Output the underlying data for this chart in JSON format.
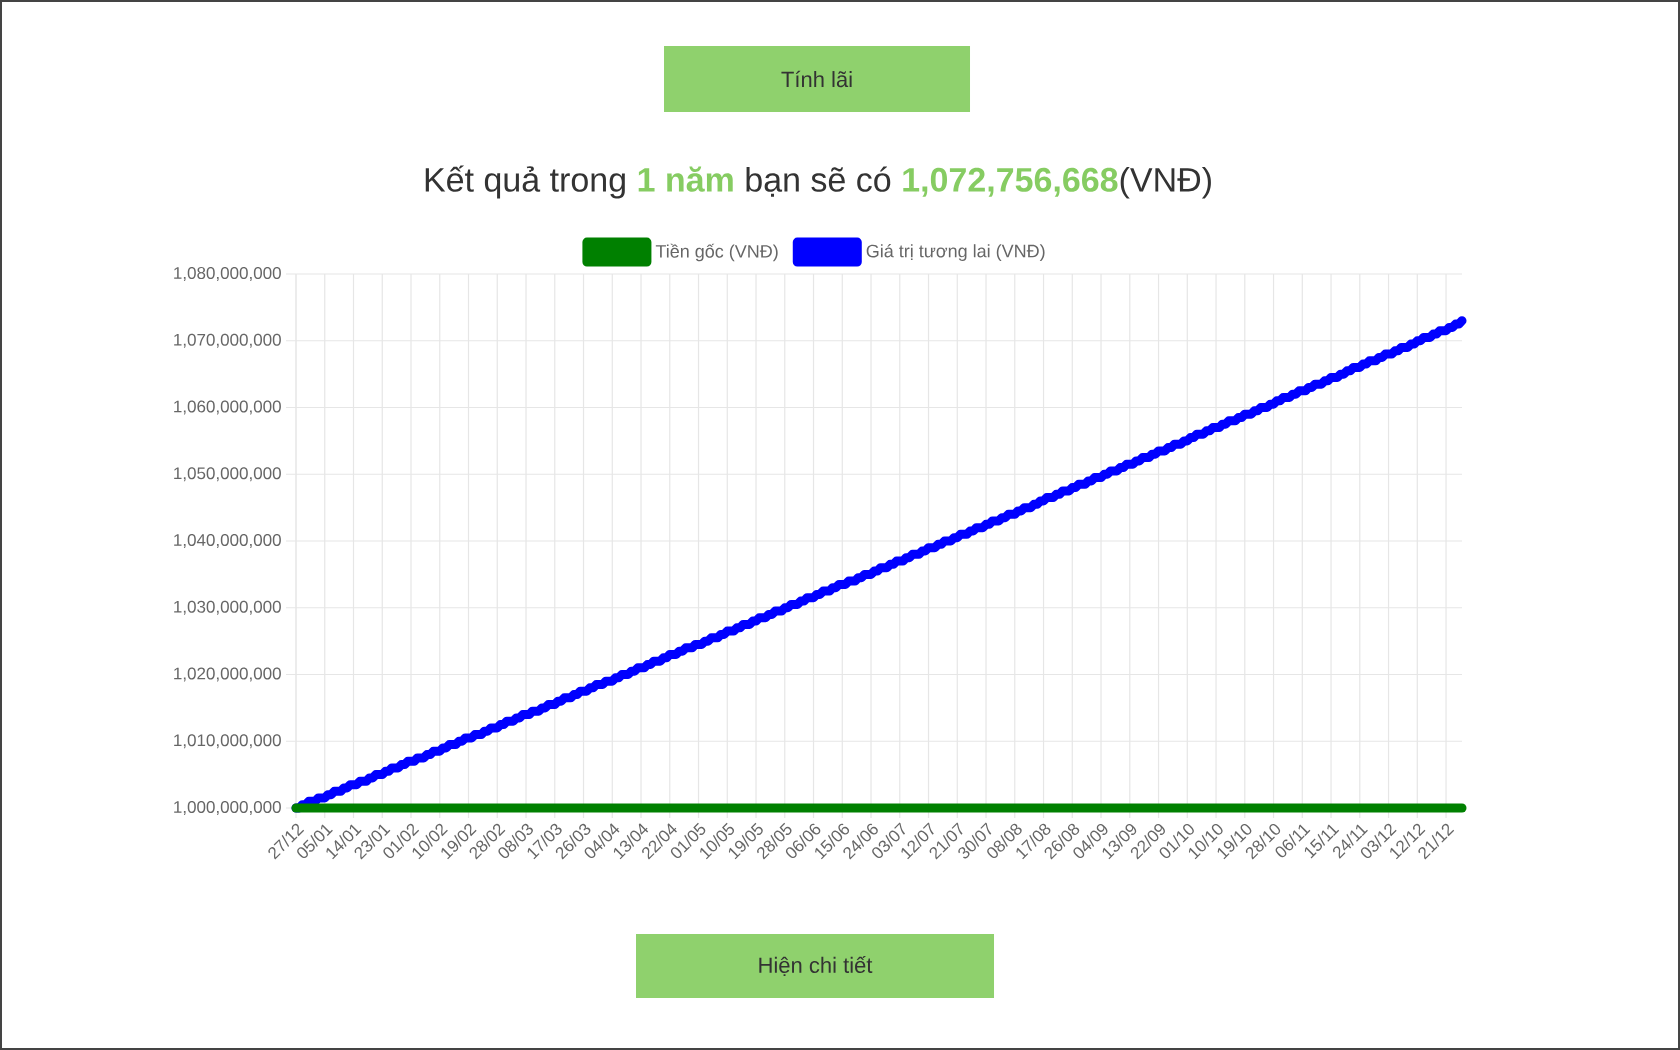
{
  "chart_data": {
    "type": "line",
    "title": "Kết quả trong **1 năm** bạn sẽ có **1,072,756,668**(VNĐ)",
    "annotations": [
      "Tính lãi",
      "Hiện chi tiết"
    ],
    "categories": [
      "27/12",
      null,
      null,
      null,
      null,
      null,
      null,
      null,
      null,
      "05/01",
      null,
      null,
      null,
      null,
      null,
      null,
      null,
      null,
      "14/01",
      null,
      null,
      null,
      null,
      null,
      null,
      null,
      null,
      "23/01",
      null,
      null,
      null,
      null,
      null,
      null,
      null,
      null,
      "01/02",
      null,
      null,
      null,
      null,
      null,
      null,
      null,
      null,
      "10/02",
      null,
      null,
      null,
      null,
      null,
      null,
      null,
      null,
      "19/02",
      null,
      null,
      null,
      null,
      null,
      null,
      null,
      null,
      "28/02",
      null,
      null,
      null,
      null,
      null,
      null,
      null,
      null,
      "08/03",
      null,
      null,
      null,
      null,
      null,
      null,
      null,
      null,
      "17/03",
      null,
      null,
      null,
      null,
      null,
      null,
      null,
      null,
      "26/03",
      null,
      null,
      null,
      null,
      null,
      null,
      null,
      null,
      "04/04",
      null,
      null,
      null,
      null,
      null,
      null,
      null,
      null,
      "13/04",
      null,
      null,
      null,
      null,
      null,
      null,
      null,
      null,
      "22/04",
      null,
      null,
      null,
      null,
      null,
      null,
      null,
      null,
      "01/05",
      null,
      null,
      null,
      null,
      null,
      null,
      null,
      null,
      "10/05",
      null,
      null,
      null,
      null,
      null,
      null,
      null,
      null,
      "19/05",
      null,
      null,
      null,
      null,
      null,
      null,
      null,
      null,
      "28/05",
      null,
      null,
      null,
      null,
      null,
      null,
      null,
      null,
      "06/06",
      null,
      null,
      null,
      null,
      null,
      null,
      null,
      null,
      "15/06",
      null,
      null,
      null,
      null,
      null,
      null,
      null,
      null,
      "24/06",
      null,
      null,
      null,
      null,
      null,
      null,
      null,
      null,
      "03/07",
      null,
      null,
      null,
      null,
      null,
      null,
      null,
      null,
      "12/07",
      null,
      null,
      null,
      null,
      null,
      null,
      null,
      null,
      "21/07",
      null,
      null,
      null,
      null,
      null,
      null,
      null,
      null,
      "30/07",
      null,
      null,
      null,
      null,
      null,
      null,
      null,
      null,
      "08/08",
      null,
      null,
      null,
      null,
      null,
      null,
      null,
      null,
      "17/08",
      null,
      null,
      null,
      null,
      null,
      null,
      null,
      null,
      "26/08",
      null,
      null,
      null,
      null,
      null,
      null,
      null,
      null,
      "04/09",
      null,
      null,
      null,
      null,
      null,
      null,
      null,
      null,
      "13/09",
      null,
      null,
      null,
      null,
      null,
      null,
      null,
      null,
      "22/09",
      null,
      null,
      null,
      null,
      null,
      null,
      null,
      null,
      "01/10",
      null,
      null,
      null,
      null,
      null,
      null,
      null,
      null,
      "10/10",
      null,
      null,
      null,
      null,
      null,
      null,
      null,
      null,
      "19/10",
      null,
      null,
      null,
      null,
      null,
      null,
      null,
      null,
      "28/10",
      null,
      null,
      null,
      null,
      null,
      null,
      null,
      null,
      "06/11",
      null,
      null,
      null,
      null,
      null,
      null,
      null,
      null,
      "15/11",
      null,
      null,
      null,
      null,
      null,
      null,
      null,
      null,
      "24/11",
      null,
      null,
      null,
      null,
      null,
      null,
      null,
      null,
      "03/12",
      null,
      null,
      null,
      null,
      null,
      null,
      null,
      null,
      "12/12",
      null,
      null,
      null,
      null,
      null,
      null,
      null,
      null,
      "21/12",
      null,
      null,
      null,
      null,
      null
    ],
    "ylim": [
      1000000000,
      1080000000
    ],
    "yticks": [
      {
        "value": 1000000000,
        "label": "1,000,000,000"
      },
      {
        "value": 1010000000,
        "label": "1,010,000,000"
      },
      {
        "value": 1020000000,
        "label": "1,020,000,000"
      },
      {
        "value": 1030000000,
        "label": "1,030,000,000"
      },
      {
        "value": 1040000000,
        "label": "1,040,000,000"
      },
      {
        "value": 1050000000,
        "label": "1,050,000,000"
      },
      {
        "value": 1060000000,
        "label": "1,060,000,000"
      },
      {
        "value": 1070000000,
        "label": "1,070,000,000"
      },
      {
        "value": 1080000000,
        "label": "1,080,000,000"
      }
    ],
    "series": [
      {
        "name": "Tiền gốc (VNĐ)",
        "color": "#008000",
        "values": [
          1000000000,
          1000000000,
          1000000000,
          1000000000,
          1000000000,
          1000000000,
          1000000000,
          1000000000,
          1000000000,
          1000000000,
          1000000000,
          1000000000,
          1000000000,
          1000000000,
          1000000000,
          1000000000,
          1000000000,
          1000000000,
          1000000000,
          1000000000,
          1000000000,
          1000000000,
          1000000000,
          1000000000,
          1000000000,
          1000000000,
          1000000000,
          1000000000,
          1000000000,
          1000000000,
          1000000000,
          1000000000,
          1000000000,
          1000000000,
          1000000000,
          1000000000,
          1000000000,
          1000000000,
          1000000000,
          1000000000,
          1000000000,
          1000000000,
          1000000000,
          1000000000,
          1000000000,
          1000000000,
          1000000000,
          1000000000,
          1000000000,
          1000000000,
          1000000000,
          1000000000,
          1000000000,
          1000000000,
          1000000000,
          1000000000,
          1000000000,
          1000000000,
          1000000000,
          1000000000,
          1000000000,
          1000000000,
          1000000000,
          1000000000,
          1000000000,
          1000000000,
          1000000000,
          1000000000,
          1000000000,
          1000000000,
          1000000000,
          1000000000,
          1000000000,
          1000000000,
          1000000000,
          1000000000,
          1000000000,
          1000000000,
          1000000000,
          1000000000,
          1000000000,
          1000000000,
          1000000000,
          1000000000,
          1000000000,
          1000000000,
          1000000000,
          1000000000,
          1000000000,
          1000000000,
          1000000000,
          1000000000,
          1000000000,
          1000000000,
          1000000000,
          1000000000,
          1000000000,
          1000000000,
          1000000000,
          1000000000,
          1000000000,
          1000000000,
          1000000000,
          1000000000,
          1000000000,
          1000000000,
          1000000000,
          1000000000,
          1000000000,
          1000000000,
          1000000000,
          1000000000,
          1000000000,
          1000000000,
          1000000000,
          1000000000,
          1000000000,
          1000000000,
          1000000000,
          1000000000,
          1000000000,
          1000000000,
          1000000000,
          1000000000,
          1000000000,
          1000000000,
          1000000000,
          1000000000,
          1000000000,
          1000000000,
          1000000000,
          1000000000,
          1000000000,
          1000000000,
          1000000000,
          1000000000,
          1000000000,
          1000000000,
          1000000000,
          1000000000,
          1000000000,
          1000000000,
          1000000000,
          1000000000,
          1000000000,
          1000000000,
          1000000000,
          1000000000,
          1000000000,
          1000000000,
          1000000000,
          1000000000,
          1000000000,
          1000000000,
          1000000000,
          1000000000,
          1000000000,
          1000000000,
          1000000000,
          1000000000,
          1000000000,
          1000000000,
          1000000000,
          1000000000,
          1000000000,
          1000000000,
          1000000000,
          1000000000,
          1000000000,
          1000000000,
          1000000000,
          1000000000,
          1000000000,
          1000000000,
          1000000000,
          1000000000,
          1000000000,
          1000000000,
          1000000000,
          1000000000,
          1000000000,
          1000000000,
          1000000000,
          1000000000,
          1000000000,
          1000000000,
          1000000000,
          1000000000,
          1000000000,
          1000000000,
          1000000000,
          1000000000,
          1000000000,
          1000000000,
          1000000000,
          1000000000,
          1000000000,
          1000000000,
          1000000000,
          1000000000,
          1000000000,
          1000000000,
          1000000000,
          1000000000,
          1000000000,
          1000000000,
          1000000000,
          1000000000,
          1000000000,
          1000000000,
          1000000000,
          1000000000,
          1000000000,
          1000000000,
          1000000000,
          1000000000,
          1000000000,
          1000000000,
          1000000000,
          1000000000,
          1000000000,
          1000000000,
          1000000000,
          1000000000,
          1000000000,
          1000000000,
          1000000000,
          1000000000,
          1000000000,
          1000000000,
          1000000000,
          1000000000,
          1000000000,
          1000000000,
          1000000000,
          1000000000,
          1000000000,
          1000000000,
          1000000000,
          1000000000,
          1000000000,
          1000000000,
          1000000000,
          1000000000,
          1000000000,
          1000000000,
          1000000000,
          1000000000,
          1000000000,
          1000000000,
          1000000000,
          1000000000,
          1000000000,
          1000000000,
          1000000000,
          1000000000,
          1000000000,
          1000000000,
          1000000000,
          1000000000,
          1000000000,
          1000000000,
          1000000000,
          1000000000,
          1000000000,
          1000000000,
          1000000000,
          1000000000,
          1000000000,
          1000000000,
          1000000000,
          1000000000,
          1000000000,
          1000000000,
          1000000000,
          1000000000,
          1000000000,
          1000000000,
          1000000000,
          1000000000,
          1000000000,
          1000000000,
          1000000000,
          1000000000,
          1000000000,
          1000000000,
          1000000000,
          1000000000,
          1000000000,
          1000000000,
          1000000000,
          1000000000,
          1000000000,
          1000000000,
          1000000000,
          1000000000,
          1000000000,
          1000000000,
          1000000000,
          1000000000,
          1000000000,
          1000000000,
          1000000000,
          1000000000,
          1000000000,
          1000000000,
          1000000000,
          1000000000,
          1000000000,
          1000000000,
          1000000000,
          1000000000,
          1000000000,
          1000000000,
          1000000000,
          1000000000,
          1000000000,
          1000000000,
          1000000000,
          1000000000,
          1000000000,
          1000000000,
          1000000000,
          1000000000,
          1000000000,
          1000000000,
          1000000000,
          1000000000,
          1000000000,
          1000000000,
          1000000000,
          1000000000,
          1000000000,
          1000000000,
          1000000000,
          1000000000,
          1000000000,
          1000000000,
          1000000000,
          1000000000,
          1000000000,
          1000000000,
          1000000000,
          1000000000,
          1000000000,
          1000000000,
          1000000000,
          1000000000,
          1000000000,
          1000000000,
          1000000000,
          1000000000,
          1000000000,
          1000000000,
          1000000000,
          1000000000,
          1000000000,
          1000000000,
          1000000000,
          1000000000,
          1000000000,
          1000000000,
          1000000000,
          1000000000,
          1000000000,
          1000000000
        ]
      },
      {
        "name": "Giá trị tương lai (VNĐ)",
        "color": "#0000ff",
        "values": [
          1000000000,
          1000000000,
          1000500000,
          1000500000,
          1001000000,
          1001000000,
          1001000000,
          1001500000,
          1001500000,
          1001500000,
          1002000000,
          1002000000,
          1002500000,
          1002500000,
          1002500000,
          1003000000,
          1003000000,
          1003500000,
          1003500000,
          1003500000,
          1004000000,
          1004000000,
          1004000000,
          1004500000,
          1004500000,
          1005000000,
          1005000000,
          1005000000,
          1005500000,
          1005500000,
          1006000000,
          1006000000,
          1006000000,
          1006500000,
          1006500000,
          1007000000,
          1007000000,
          1007000000,
          1007500000,
          1007500000,
          1007500000,
          1008000000,
          1008000000,
          1008500000,
          1008500000,
          1008500000,
          1009000000,
          1009000000,
          1009500000,
          1009500000,
          1009500000,
          1010000000,
          1010000000,
          1010500000,
          1010500000,
          1010500000,
          1011000000,
          1011000000,
          1011000000,
          1011500000,
          1011500000,
          1012000000,
          1012000000,
          1012000000,
          1012500000,
          1012500000,
          1013000000,
          1013000000,
          1013000000,
          1013500000,
          1013500000,
          1014000000,
          1014000000,
          1014000000,
          1014500000,
          1014500000,
          1014500000,
          1015000000,
          1015000000,
          1015500000,
          1015500000,
          1015500000,
          1016000000,
          1016000000,
          1016500000,
          1016500000,
          1016500000,
          1017000000,
          1017000000,
          1017500000,
          1017500000,
          1017500000,
          1018000000,
          1018000000,
          1018500000,
          1018500000,
          1018500000,
          1019000000,
          1019000000,
          1019000000,
          1019500000,
          1019500000,
          1020000000,
          1020000000,
          1020000000,
          1020500000,
          1020500000,
          1021000000,
          1021000000,
          1021000000,
          1021500000,
          1021500000,
          1022000000,
          1022000000,
          1022000000,
          1022500000,
          1022500000,
          1023000000,
          1023000000,
          1023000000,
          1023500000,
          1023500000,
          1024000000,
          1024000000,
          1024000000,
          1024500000,
          1024500000,
          1024500000,
          1025000000,
          1025000000,
          1025500000,
          1025500000,
          1025500000,
          1026000000,
          1026000000,
          1026500000,
          1026500000,
          1026500000,
          1027000000,
          1027000000,
          1027500000,
          1027500000,
          1027500000,
          1028000000,
          1028000000,
          1028500000,
          1028500000,
          1028500000,
          1029000000,
          1029000000,
          1029500000,
          1029500000,
          1029500000,
          1030000000,
          1030000000,
          1030500000,
          1030500000,
          1030500000,
          1031000000,
          1031000000,
          1031500000,
          1031500000,
          1031500000,
          1032000000,
          1032000000,
          1032500000,
          1032500000,
          1032500000,
          1033000000,
          1033000000,
          1033500000,
          1033500000,
          1033500000,
          1034000000,
          1034000000,
          1034000000,
          1034500000,
          1034500000,
          1035000000,
          1035000000,
          1035000000,
          1035500000,
          1035500000,
          1036000000,
          1036000000,
          1036000000,
          1036500000,
          1036500000,
          1037000000,
          1037000000,
          1037000000,
          1037500000,
          1037500000,
          1038000000,
          1038000000,
          1038000000,
          1038500000,
          1038500000,
          1039000000,
          1039000000,
          1039000000,
          1039500000,
          1039500000,
          1040000000,
          1040000000,
          1040000000,
          1040500000,
          1040500000,
          1041000000,
          1041000000,
          1041000000,
          1041500000,
          1041500000,
          1042000000,
          1042000000,
          1042000000,
          1042500000,
          1042500000,
          1043000000,
          1043000000,
          1043000000,
          1043500000,
          1043500000,
          1044000000,
          1044000000,
          1044000000,
          1044500000,
          1044500000,
          1045000000,
          1045000000,
          1045000000,
          1045500000,
          1045500000,
          1046000000,
          1046000000,
          1046500000,
          1046500000,
          1046500000,
          1047000000,
          1047000000,
          1047500000,
          1047500000,
          1047500000,
          1048000000,
          1048000000,
          1048500000,
          1048500000,
          1048500000,
          1049000000,
          1049000000,
          1049500000,
          1049500000,
          1049500000,
          1050000000,
          1050000000,
          1050500000,
          1050500000,
          1050500000,
          1051000000,
          1051000000,
          1051500000,
          1051500000,
          1051500000,
          1052000000,
          1052000000,
          1052500000,
          1052500000,
          1052500000,
          1053000000,
          1053000000,
          1053500000,
          1053500000,
          1053500000,
          1054000000,
          1054000000,
          1054500000,
          1054500000,
          1054500000,
          1055000000,
          1055000000,
          1055500000,
          1055500000,
          1056000000,
          1056000000,
          1056000000,
          1056500000,
          1056500000,
          1057000000,
          1057000000,
          1057000000,
          1057500000,
          1057500000,
          1058000000,
          1058000000,
          1058000000,
          1058500000,
          1058500000,
          1059000000,
          1059000000,
          1059000000,
          1059500000,
          1059500000,
          1060000000,
          1060000000,
          1060000000,
          1060500000,
          1060500000,
          1061000000,
          1061000000,
          1061500000,
          1061500000,
          1061500000,
          1062000000,
          1062000000,
          1062500000,
          1062500000,
          1062500000,
          1063000000,
          1063000000,
          1063500000,
          1063500000,
          1063500000,
          1064000000,
          1064000000,
          1064500000,
          1064500000,
          1064500000,
          1065000000,
          1065000000,
          1065500000,
          1065500000,
          1066000000,
          1066000000,
          1066000000,
          1066500000,
          1066500000,
          1067000000,
          1067000000,
          1067000000,
          1067500000,
          1067500000,
          1068000000,
          1068000000,
          1068000000,
          1068500000,
          1068500000,
          1069000000,
          1069000000,
          1069000000,
          1069500000,
          1069500000,
          1070000000,
          1070000000,
          1070500000,
          1070500000,
          1070500000,
          1071000000,
          1071000000,
          1071500000,
          1071500000,
          1071500000,
          1072000000,
          1072000000,
          1072500000,
          1072500000,
          1073000000
        ]
      }
    ],
    "grid": true,
    "legend": "top"
  }
}
